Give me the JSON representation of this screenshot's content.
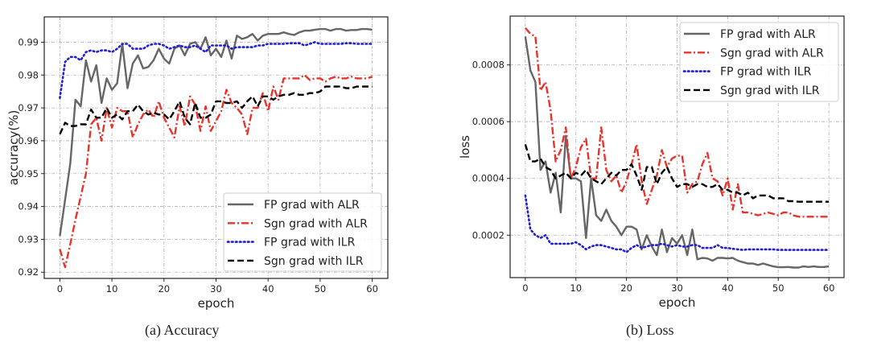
{
  "chart_data": [
    {
      "type": "line",
      "caption": "(a) Accuracy",
      "xlabel": "epoch",
      "ylabel": "accuracy(%)",
      "xlim": [
        -3,
        63
      ],
      "ylim": [
        0.9181,
        0.9977
      ],
      "xticks": [
        0,
        10,
        20,
        30,
        40,
        50,
        60
      ],
      "yticks": [
        0.92,
        0.93,
        0.94,
        0.95,
        0.96,
        0.97,
        0.98,
        0.99
      ],
      "ytick_labels": [
        "0.92",
        "0.93",
        "0.94",
        "0.95",
        "0.96",
        "0.97",
        "0.98",
        "0.99"
      ],
      "grid": true,
      "legend_placement": "lower-right",
      "series": [
        {
          "name": "FP grad with ALR",
          "color": "#666666",
          "style": "solid",
          "values": [
            0.931,
            0.942,
            0.953,
            0.9725,
            0.9705,
            0.9845,
            0.978,
            0.983,
            0.9715,
            0.979,
            0.9755,
            0.9775,
            0.9895,
            0.976,
            0.9835,
            0.986,
            0.982,
            0.9825,
            0.9845,
            0.988,
            0.985,
            0.9835,
            0.988,
            0.989,
            0.986,
            0.9895,
            0.99,
            0.988,
            0.9915,
            0.986,
            0.988,
            0.9855,
            0.9905,
            0.985,
            0.992,
            0.991,
            0.9915,
            0.9925,
            0.9905,
            0.992,
            0.9925,
            0.9925,
            0.9925,
            0.993,
            0.9925,
            0.9922,
            0.993,
            0.9935,
            0.9935,
            0.9938,
            0.994,
            0.994,
            0.9935,
            0.994,
            0.994,
            0.9935,
            0.9937,
            0.9937,
            0.994,
            0.994,
            0.9938
          ]
        },
        {
          "name": "Sgn grad with ALR",
          "color": "#e8332a",
          "style": "dashdot",
          "values": [
            0.927,
            0.9215,
            0.9285,
            0.936,
            0.943,
            0.95,
            0.965,
            0.967,
            0.96,
            0.97,
            0.964,
            0.97,
            0.969,
            0.969,
            0.961,
            0.965,
            0.968,
            0.9695,
            0.967,
            0.972,
            0.967,
            0.964,
            0.961,
            0.9705,
            0.9645,
            0.9735,
            0.971,
            0.963,
            0.9705,
            0.963,
            0.966,
            0.969,
            0.9755,
            0.9715,
            0.97,
            0.968,
            0.962,
            0.97,
            0.97,
            0.9745,
            0.969,
            0.9765,
            0.9725,
            0.979,
            0.979,
            0.979,
            0.979,
            0.98,
            0.9785,
            0.979,
            0.979,
            0.978,
            0.979,
            0.9795,
            0.979,
            0.979,
            0.9795,
            0.979,
            0.979,
            0.979,
            0.9795
          ]
        },
        {
          "name": "FP grad with ILR",
          "color": "#1f1fd6",
          "style": "dotted",
          "values": [
            0.973,
            0.984,
            0.9855,
            0.9855,
            0.9845,
            0.987,
            0.9875,
            0.987,
            0.9875,
            0.9875,
            0.987,
            0.988,
            0.9895,
            0.9895,
            0.988,
            0.988,
            0.988,
            0.989,
            0.9895,
            0.9895,
            0.989,
            0.988,
            0.9885,
            0.989,
            0.9885,
            0.9885,
            0.989,
            0.988,
            0.987,
            0.989,
            0.989,
            0.989,
            0.989,
            0.988,
            0.9885,
            0.9885,
            0.9885,
            0.9885,
            0.989,
            0.989,
            0.9895,
            0.9895,
            0.9895,
            0.9895,
            0.9897,
            0.9897,
            0.9897,
            0.989,
            0.9895,
            0.99,
            0.9895,
            0.9895,
            0.9895,
            0.9895,
            0.9895,
            0.9897,
            0.9897,
            0.9895,
            0.9895,
            0.9895,
            0.9895
          ]
        },
        {
          "name": "Sgn grad with ILR",
          "color": "#000000",
          "style": "dashed",
          "values": [
            0.962,
            0.9655,
            0.9645,
            0.9645,
            0.965,
            0.965,
            0.9695,
            0.967,
            0.967,
            0.97,
            0.967,
            0.968,
            0.9665,
            0.969,
            0.969,
            0.971,
            0.969,
            0.968,
            0.9685,
            0.968,
            0.968,
            0.9665,
            0.969,
            0.972,
            0.967,
            0.965,
            0.9715,
            0.967,
            0.967,
            0.968,
            0.972,
            0.972,
            0.9715,
            0.9715,
            0.972,
            0.97,
            0.972,
            0.9735,
            0.9705,
            0.9735,
            0.9735,
            0.9725,
            0.9735,
            0.974,
            0.974,
            0.9745,
            0.974,
            0.974,
            0.9745,
            0.9745,
            0.975,
            0.9765,
            0.9765,
            0.9765,
            0.9765,
            0.976,
            0.976,
            0.9765,
            0.9765,
            0.9765,
            0.9765
          ]
        }
      ]
    },
    {
      "type": "line",
      "caption": "(b) Loss",
      "xlabel": "epoch",
      "ylabel": "loss",
      "xlim": [
        -3,
        63
      ],
      "ylim": [
        5.05e-05,
        0.000972
      ],
      "xticks": [
        0,
        10,
        20,
        30,
        40,
        50,
        60
      ],
      "yticks": [
        0.0002,
        0.0004,
        0.0006,
        0.0008
      ],
      "ytick_labels": [
        "0.0002",
        "0.0004",
        "0.0006",
        "0.0008"
      ],
      "grid": true,
      "legend_placement": "upper-right",
      "series": [
        {
          "name": "FP grad with ALR",
          "color": "#666666",
          "style": "solid",
          "values": [
            0.0009,
            0.00078,
            0.00074,
            0.00043,
            0.00046,
            0.00035,
            0.00042,
            0.00028,
            0.00055,
            0.0004,
            0.0004,
            0.00039,
            0.00019,
            0.0004,
            0.00027,
            0.00025,
            0.00029,
            0.00025,
            0.00023,
            0.0002,
            0.00023,
            0.00023,
            0.00022,
            0.00015,
            0.0002,
            0.00016,
            0.00013,
            0.00022,
            0.00014,
            0.00019,
            0.00017,
            0.0002,
            0.00013,
            0.00022,
            0.000115,
            0.00012,
            0.000118,
            0.00011,
            0.00012,
            0.00012,
            0.000118,
            0.00012,
            0.00011,
            0.000105,
            0.0001,
            0.0001,
            9.5e-05,
            0.0001,
            9.5e-05,
            9e-05,
            8.7e-05,
            8.7e-05,
            8.8e-05,
            8.6e-05,
            8.6e-05,
            9e-05,
            8.8e-05,
            9e-05,
            8.8e-05,
            8.8e-05,
            9e-05
          ]
        },
        {
          "name": "Sgn grad with ALR",
          "color": "#e8332a",
          "style": "dashdot",
          "values": [
            0.00093,
            0.00091,
            0.0009,
            0.00071,
            0.00074,
            0.00064,
            0.00046,
            0.0005,
            0.00058,
            0.0004,
            0.00044,
            0.00051,
            0.00054,
            0.0004,
            0.0004,
            0.00058,
            0.00043,
            0.00039,
            0.00041,
            0.00035,
            0.00039,
            0.00045,
            0.00052,
            0.00039,
            0.00031,
            0.00036,
            0.00041,
            0.0005,
            0.00044,
            0.00047,
            0.00048,
            0.00048,
            0.00035,
            0.00038,
            0.00039,
            0.00045,
            0.00049,
            0.0004,
            0.00039,
            0.00034,
            0.0004,
            0.00029,
            0.00038,
            0.00028,
            0.00028,
            0.000275,
            0.00027,
            0.000275,
            0.00028,
            0.000275,
            0.00027,
            0.00028,
            0.00028,
            0.00027,
            0.000265,
            0.000265,
            0.000265,
            0.000265,
            0.000265,
            0.000265,
            0.000265
          ]
        },
        {
          "name": "FP grad with ILR",
          "color": "#1f1fd6",
          "style": "dotted",
          "values": [
            0.00034,
            0.00022,
            0.0002,
            0.00019,
            0.0002,
            0.00017,
            0.00017,
            0.00017,
            0.00017,
            0.00017,
            0.000175,
            0.000165,
            0.00015,
            0.00016,
            0.000165,
            0.000165,
            0.00016,
            0.000155,
            0.00015,
            0.00015,
            0.00014,
            0.000155,
            0.000165,
            0.000155,
            0.00016,
            0.000165,
            0.000165,
            0.00017,
            0.000165,
            0.00016,
            0.000165,
            0.00016,
            0.00016,
            0.000165,
            0.000165,
            0.000155,
            0.000155,
            0.000155,
            0.000165,
            0.000155,
            0.000155,
            0.000152,
            0.00015,
            0.000148,
            0.00015,
            0.00015,
            0.00015,
            0.00015,
            0.00015,
            0.00015,
            0.000148,
            0.000148,
            0.000148,
            0.000148,
            0.000148,
            0.000148,
            0.000148,
            0.000148,
            0.000148,
            0.000148,
            0.000148
          ]
        },
        {
          "name": "Sgn grad with ILR",
          "color": "#000000",
          "style": "dashed",
          "values": [
            0.00052,
            0.00046,
            0.00046,
            0.00047,
            0.00044,
            0.00043,
            0.0004,
            0.00041,
            0.00042,
            0.0004,
            0.00042,
            0.00041,
            0.00043,
            0.0004,
            0.00039,
            0.00038,
            0.0004,
            0.00042,
            0.00041,
            0.00043,
            0.00043,
            0.00045,
            0.00041,
            0.00036,
            0.00044,
            0.00044,
            0.00038,
            0.00042,
            0.00044,
            0.0004,
            0.00037,
            0.00038,
            0.00038,
            0.00037,
            0.00038,
            0.00038,
            0.00037,
            0.00037,
            0.00038,
            0.00036,
            0.00036,
            0.00035,
            0.00035,
            0.00034,
            0.00035,
            0.00033,
            0.00034,
            0.00034,
            0.00034,
            0.00033,
            0.00033,
            0.00033,
            0.00032,
            0.00032,
            0.000318,
            0.000318,
            0.000318,
            0.000318,
            0.000318,
            0.000318,
            0.000318
          ]
        }
      ]
    }
  ]
}
